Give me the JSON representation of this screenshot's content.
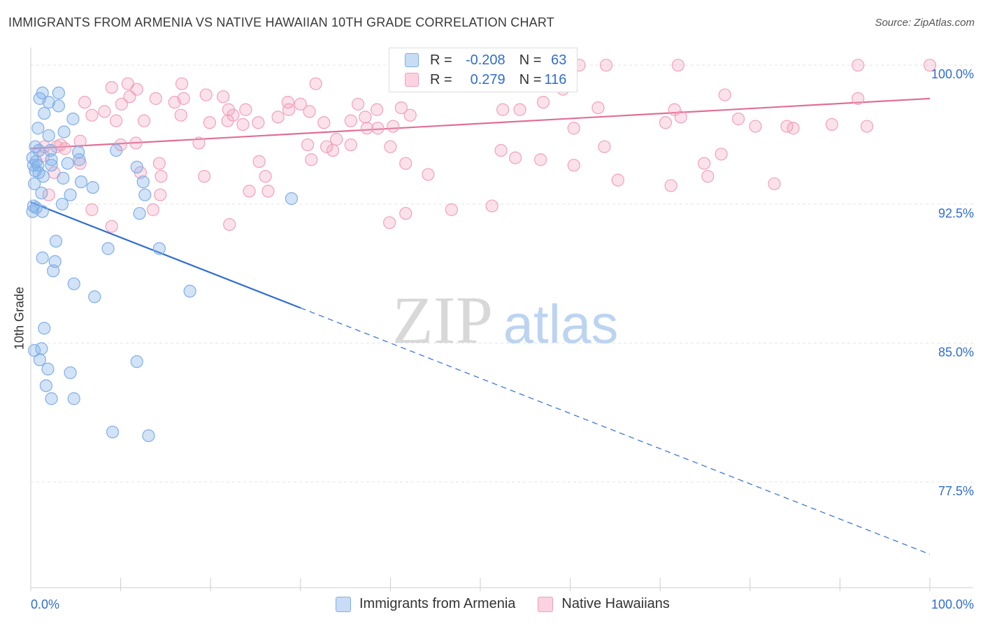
{
  "header": {
    "title": "IMMIGRANTS FROM ARMENIA VS NATIVE HAWAIIAN 10TH GRADE CORRELATION CHART",
    "source": "Source: ZipAtlas.com"
  },
  "watermark": {
    "zip": "ZIP",
    "atlas": "atlas"
  },
  "legend": {
    "rows": [
      {
        "r_label": "R =",
        "r_value": "-0.208",
        "n_label": "N =",
        "n_value": "63",
        "color": "#7faee8"
      },
      {
        "r_label": "R =",
        "r_value": "0.279",
        "n_label": "N =",
        "n_value": "116",
        "color": "#f2a0b8"
      }
    ]
  },
  "bottom_legend": [
    {
      "label": "Immigrants from Armenia",
      "color": "#7faee8"
    },
    {
      "label": "Native Hawaiians",
      "color": "#f2a0b8"
    }
  ],
  "chart_data": {
    "type": "scatter",
    "title": "IMMIGRANTS FROM ARMENIA VS NATIVE HAWAIIAN 10TH GRADE CORRELATION CHART",
    "xlabel": "",
    "ylabel": "10th Grade",
    "xlim": [
      0,
      100
    ],
    "ylim": [
      71.8,
      100.8
    ],
    "x_tick_labels": [
      "0.0%",
      "100.0%"
    ],
    "y_ticks": [
      77.5,
      85.0,
      92.5,
      100.0
    ],
    "y_tick_labels": [
      "77.5%",
      "85.0%",
      "92.5%",
      "100.0%"
    ],
    "grid": true,
    "legend_position": "top-center",
    "series": [
      {
        "name": "Immigrants from Armenia",
        "color": "#7faee8",
        "line_color": "#2f6dd1",
        "trend": {
          "x0": 0,
          "y0": 92.6,
          "x1": 100,
          "y1": 73.6,
          "solid_until_x": 30
        },
        "points": [
          [
            1.3,
            98.5
          ],
          [
            3.1,
            98.5
          ],
          [
            1.0,
            98.2
          ],
          [
            2.0,
            98.0
          ],
          [
            3.1,
            97.8
          ],
          [
            1.5,
            97.4
          ],
          [
            4.7,
            97.1
          ],
          [
            0.8,
            96.6
          ],
          [
            3.7,
            96.4
          ],
          [
            2.0,
            96.2
          ],
          [
            0.5,
            95.6
          ],
          [
            0.9,
            95.4
          ],
          [
            2.2,
            95.4
          ],
          [
            5.3,
            95.3
          ],
          [
            9.5,
            95.4
          ],
          [
            0.6,
            94.8
          ],
          [
            2.3,
            94.9
          ],
          [
            5.4,
            94.9
          ],
          [
            0.3,
            94.6
          ],
          [
            0.8,
            94.6
          ],
          [
            2.3,
            94.6
          ],
          [
            4.1,
            94.7
          ],
          [
            11.8,
            94.5
          ],
          [
            0.5,
            94.3
          ],
          [
            0.9,
            94.2
          ],
          [
            1.4,
            94.0
          ],
          [
            3.6,
            93.9
          ],
          [
            5.6,
            93.7
          ],
          [
            12.5,
            93.7
          ],
          [
            6.9,
            93.4
          ],
          [
            0.4,
            93.6
          ],
          [
            1.2,
            93.1
          ],
          [
            4.4,
            93.0
          ],
          [
            12.7,
            93.0
          ],
          [
            29.0,
            92.8
          ],
          [
            3.5,
            92.5
          ],
          [
            0.3,
            92.4
          ],
          [
            0.6,
            92.3
          ],
          [
            0.2,
            92.1
          ],
          [
            1.3,
            92.1
          ],
          [
            12.1,
            92.0
          ],
          [
            2.8,
            90.5
          ],
          [
            8.6,
            90.1
          ],
          [
            14.3,
            90.1
          ],
          [
            1.3,
            89.6
          ],
          [
            2.7,
            89.4
          ],
          [
            2.5,
            88.9
          ],
          [
            4.8,
            88.2
          ],
          [
            17.7,
            87.8
          ],
          [
            7.1,
            87.5
          ],
          [
            1.5,
            85.8
          ],
          [
            1.2,
            84.7
          ],
          [
            1.0,
            84.1
          ],
          [
            11.8,
            84.0
          ],
          [
            1.9,
            83.6
          ],
          [
            4.4,
            83.4
          ],
          [
            1.7,
            82.7
          ],
          [
            2.3,
            82.0
          ],
          [
            4.8,
            82.0
          ],
          [
            9.1,
            80.2
          ],
          [
            13.1,
            80.0
          ],
          [
            0.4,
            84.6
          ],
          [
            0.2,
            95.0
          ]
        ]
      },
      {
        "name": "Native Hawaiians",
        "color": "#f2a0b8",
        "line_color": "#e06f95",
        "trend": {
          "x0": 0,
          "y0": 95.5,
          "x1": 100,
          "y1": 98.2
        },
        "points": [
          [
            41.0,
            100.0
          ],
          [
            44.0,
            100.0
          ],
          [
            45.0,
            100.0
          ],
          [
            47.5,
            100.0
          ],
          [
            60.0,
            100.0
          ],
          [
            61.0,
            100.0
          ],
          [
            64.0,
            100.0
          ],
          [
            72.0,
            100.0
          ],
          [
            92.0,
            100.0
          ],
          [
            100.0,
            100.0
          ],
          [
            9.0,
            98.8
          ],
          [
            10.8,
            99.0
          ],
          [
            11.8,
            98.7
          ],
          [
            16.8,
            99.0
          ],
          [
            31.7,
            99.0
          ],
          [
            57.0,
            98.0
          ],
          [
            59.2,
            98.7
          ],
          [
            77.2,
            98.4
          ],
          [
            92.0,
            98.2
          ],
          [
            11.0,
            98.3
          ],
          [
            13.9,
            98.2
          ],
          [
            17.0,
            98.2
          ],
          [
            19.5,
            98.4
          ],
          [
            21.4,
            98.3
          ],
          [
            6.0,
            98.0
          ],
          [
            10.1,
            97.9
          ],
          [
            16.0,
            98.0
          ],
          [
            28.6,
            98.0
          ],
          [
            30.0,
            97.9
          ],
          [
            36.4,
            97.9
          ],
          [
            22.0,
            97.6
          ],
          [
            8.2,
            97.5
          ],
          [
            23.9,
            97.6
          ],
          [
            28.7,
            97.6
          ],
          [
            31.0,
            97.5
          ],
          [
            38.5,
            97.6
          ],
          [
            41.2,
            97.7
          ],
          [
            52.5,
            97.6
          ],
          [
            54.4,
            97.6
          ],
          [
            63.1,
            97.7
          ],
          [
            6.8,
            97.3
          ],
          [
            16.7,
            97.3
          ],
          [
            22.5,
            97.3
          ],
          [
            27.5,
            97.2
          ],
          [
            37.2,
            97.2
          ],
          [
            42.2,
            97.3
          ],
          [
            71.6,
            97.6
          ],
          [
            72.3,
            97.2
          ],
          [
            78.7,
            97.1
          ],
          [
            12.6,
            97.0
          ],
          [
            9.5,
            97.0
          ],
          [
            19.9,
            96.9
          ],
          [
            21.9,
            97.0
          ],
          [
            23.6,
            96.8
          ],
          [
            25.3,
            96.9
          ],
          [
            32.6,
            96.9
          ],
          [
            35.6,
            97.0
          ],
          [
            40.3,
            96.7
          ],
          [
            60.4,
            96.6
          ],
          [
            70.6,
            96.9
          ],
          [
            80.6,
            96.7
          ],
          [
            84.1,
            96.7
          ],
          [
            84.8,
            96.6
          ],
          [
            89.1,
            96.8
          ],
          [
            93.0,
            96.7
          ],
          [
            38.6,
            96.6
          ],
          [
            37.4,
            96.6
          ],
          [
            34.0,
            96.0
          ],
          [
            1.5,
            95.6
          ],
          [
            2.9,
            95.6
          ],
          [
            3.3,
            95.7
          ],
          [
            5.5,
            95.9
          ],
          [
            10.0,
            95.7
          ],
          [
            11.7,
            95.8
          ],
          [
            18.7,
            95.8
          ],
          [
            30.8,
            95.7
          ],
          [
            32.9,
            95.6
          ],
          [
            35.6,
            95.7
          ],
          [
            40.0,
            95.6
          ],
          [
            52.3,
            95.4
          ],
          [
            63.8,
            95.6
          ],
          [
            76.8,
            95.2
          ],
          [
            3.8,
            95.5
          ],
          [
            1.4,
            95.1
          ],
          [
            5.5,
            94.7
          ],
          [
            14.3,
            94.7
          ],
          [
            25.4,
            94.8
          ],
          [
            31.2,
            94.9
          ],
          [
            33.6,
            95.4
          ],
          [
            41.7,
            94.7
          ],
          [
            53.9,
            95.0
          ],
          [
            56.7,
            94.9
          ],
          [
            60.4,
            94.6
          ],
          [
            74.9,
            94.7
          ],
          [
            2.6,
            94.2
          ],
          [
            12.2,
            94.2
          ],
          [
            14.5,
            94.0
          ],
          [
            19.3,
            94.0
          ],
          [
            26.1,
            94.0
          ],
          [
            44.2,
            94.1
          ],
          [
            75.3,
            94.0
          ],
          [
            82.7,
            93.6
          ],
          [
            65.3,
            93.8
          ],
          [
            71.2,
            93.5
          ],
          [
            2.0,
            93.0
          ],
          [
            14.4,
            93.0
          ],
          [
            24.3,
            93.2
          ],
          [
            26.4,
            93.2
          ],
          [
            6.8,
            92.2
          ],
          [
            13.6,
            92.2
          ],
          [
            39.9,
            91.5
          ],
          [
            41.7,
            92.0
          ],
          [
            46.8,
            92.2
          ],
          [
            51.3,
            92.4
          ],
          [
            22.1,
            91.4
          ],
          [
            9.0,
            91.3
          ]
        ]
      }
    ]
  }
}
